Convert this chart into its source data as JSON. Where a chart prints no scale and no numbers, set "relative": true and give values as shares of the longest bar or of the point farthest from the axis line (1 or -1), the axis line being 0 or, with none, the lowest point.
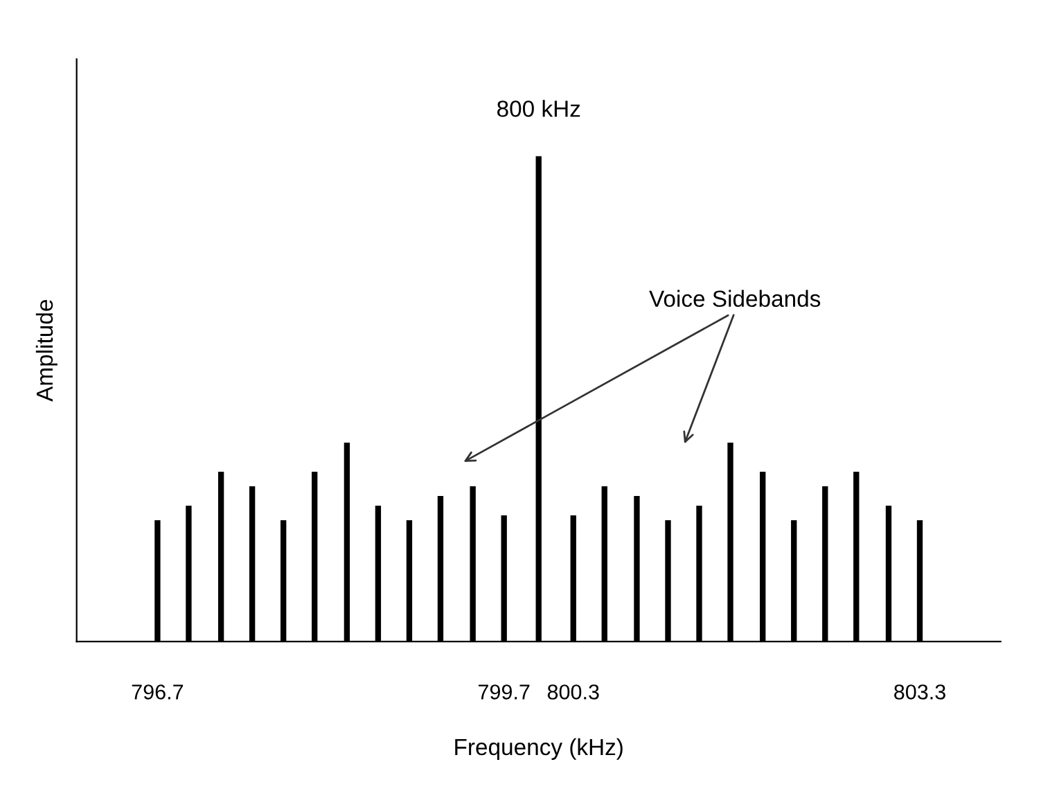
{
  "chart_data": {
    "type": "bar",
    "relative": true,
    "xlabel": "Frequency (kHz)",
    "ylabel": "Amplitude",
    "xlim": [
      796.0,
      804.0
    ],
    "xticks": [
      796.7,
      799.7,
      800.3,
      803.3
    ],
    "grid": false,
    "legend": false,
    "series": [
      {
        "color": "#000000",
        "x": [
          796.7,
          796.97,
          797.25,
          797.52,
          797.79,
          798.06,
          798.34,
          798.61,
          798.88,
          799.15,
          799.43,
          799.7,
          800.0,
          800.3,
          800.57,
          800.85,
          801.12,
          801.39,
          801.66,
          801.94,
          802.21,
          802.48,
          802.75,
          803.03,
          803.3
        ],
        "values": [
          0.25,
          0.28,
          0.35,
          0.32,
          0.25,
          0.35,
          0.41,
          0.28,
          0.25,
          0.3,
          0.32,
          0.26,
          1.0,
          0.26,
          0.32,
          0.3,
          0.25,
          0.28,
          0.41,
          0.35,
          0.25,
          0.32,
          0.35,
          0.28,
          0.25
        ]
      }
    ],
    "annotations": [
      {
        "text": "800 kHz",
        "x": 800.0,
        "y": 1.0
      },
      "Voice Sidebands"
    ]
  }
}
